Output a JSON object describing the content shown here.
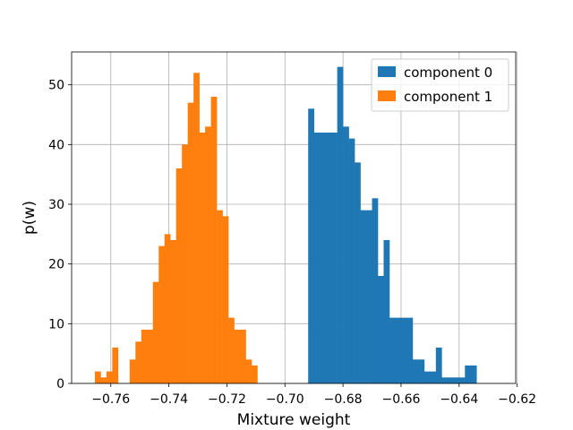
{
  "chart_data": {
    "type": "bar",
    "xlabel": "Mixture weight",
    "ylabel": "p(w)",
    "xlim": [
      -0.7735,
      -0.6205
    ],
    "ylim": [
      0,
      55.5
    ],
    "xticks": [
      -0.76,
      -0.74,
      -0.72,
      -0.7,
      -0.68,
      -0.66,
      -0.64,
      -0.62
    ],
    "xtick_labels": [
      "−0.76",
      "−0.74",
      "−0.72",
      "−0.70",
      "−0.68",
      "−0.66",
      "−0.64",
      "−0.62"
    ],
    "yticks": [
      0,
      10,
      20,
      30,
      40,
      50
    ],
    "ytick_labels": [
      "0",
      "10",
      "20",
      "30",
      "40",
      "50"
    ],
    "grid": true,
    "legend_position": "top-right",
    "series": [
      {
        "name": "component 0",
        "color": "#1f77b4",
        "bin_width": 0.002,
        "bin_starts": [
          -0.692,
          -0.69,
          -0.688,
          -0.686,
          -0.684,
          -0.682,
          -0.68,
          -0.678,
          -0.676,
          -0.674,
          -0.672,
          -0.67,
          -0.668,
          -0.666,
          -0.664,
          -0.662,
          -0.66,
          -0.658,
          -0.656,
          -0.654,
          -0.652,
          -0.65,
          -0.648,
          -0.646,
          -0.644,
          -0.642,
          -0.64,
          -0.638,
          -0.636,
          -0.634,
          -0.632,
          -0.63,
          -0.628
        ],
        "values": [
          46,
          42,
          42,
          42,
          42,
          53,
          43,
          41,
          37,
          29,
          29,
          31,
          18,
          24,
          11,
          11,
          11,
          11,
          4,
          4,
          2,
          2,
          6,
          1,
          1,
          1,
          1,
          3,
          3,
          0,
          0,
          0,
          0
        ]
      },
      {
        "name": "component 1",
        "color": "#ff7f0e",
        "bin_width": 0.002,
        "bin_starts": [
          -0.7655,
          -0.7635,
          -0.7615,
          -0.7595,
          -0.7575,
          -0.7555,
          -0.7535,
          -0.7515,
          -0.7495,
          -0.7475,
          -0.7455,
          -0.7435,
          -0.7415,
          -0.7395,
          -0.7375,
          -0.7355,
          -0.7335,
          -0.7315,
          -0.7295,
          -0.7275,
          -0.7255,
          -0.7235,
          -0.7215,
          -0.7195,
          -0.7175,
          -0.7155,
          -0.7135,
          -0.7115,
          -0.7095,
          -0.7075,
          -0.7055,
          -0.7035,
          -0.7015,
          -0.6995,
          -0.6975,
          -0.6955,
          -0.6935,
          -0.6915,
          -0.6895,
          -0.6875,
          -0.6855,
          -0.6835,
          -0.6815,
          -0.6795,
          -0.6775,
          -0.6755,
          -0.6735,
          -0.6715
        ],
        "values": [
          2,
          1,
          2,
          6,
          0,
          0,
          4,
          7,
          9,
          9,
          17,
          23,
          25,
          24,
          36,
          40,
          47,
          52,
          42,
          43,
          48,
          29,
          28,
          11,
          9,
          9,
          4,
          3,
          0,
          0,
          0,
          0,
          0,
          0,
          0,
          0,
          0,
          0,
          0,
          0,
          0,
          0,
          0,
          0,
          0,
          0,
          0,
          0
        ]
      }
    ]
  }
}
